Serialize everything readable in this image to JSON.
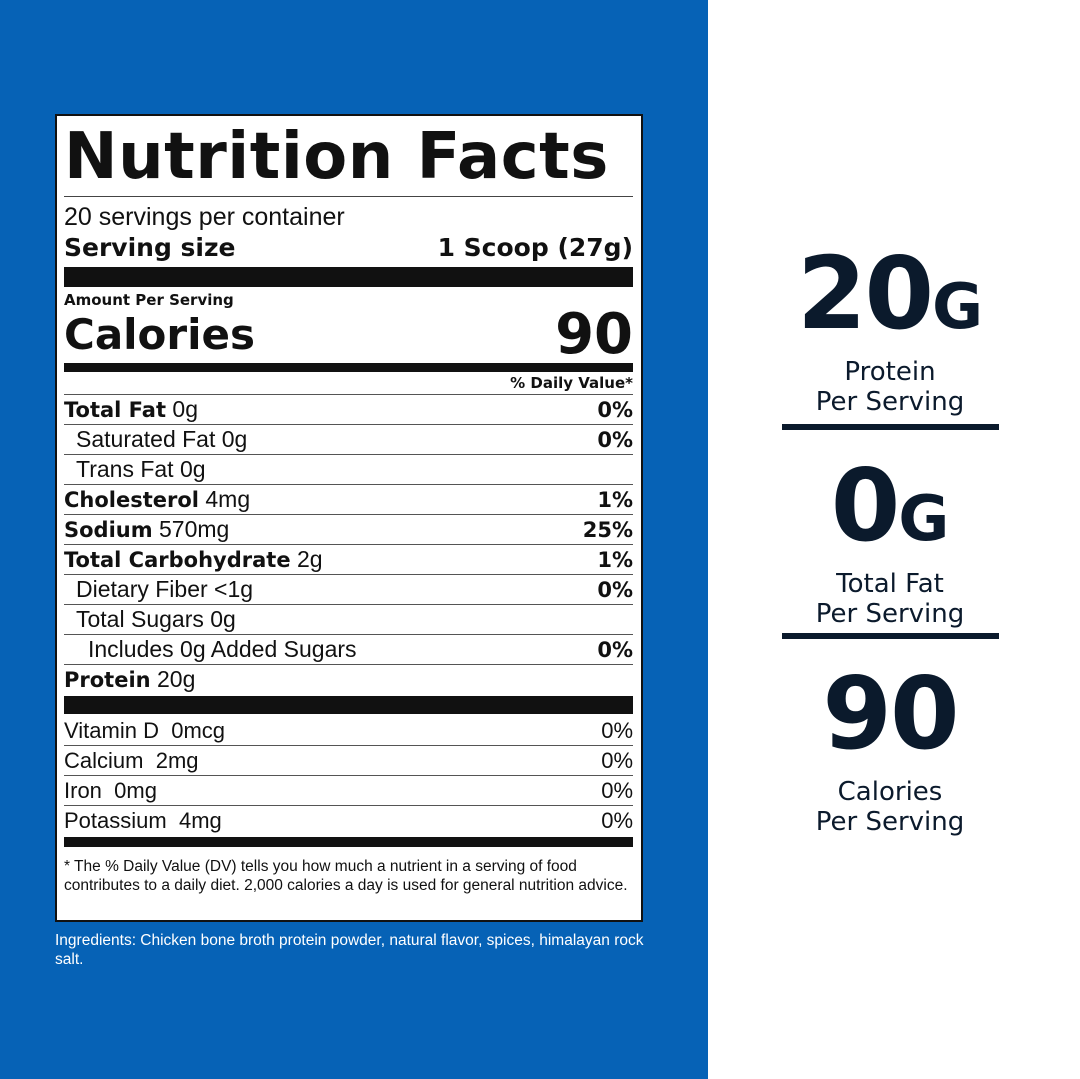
{
  "label": {
    "title": "Nutrition Facts",
    "servings_per_container": "20 servings per container",
    "serving_size_label": "Serving size",
    "serving_size_value": "1 Scoop (27g)",
    "amount_per_serving": "Amount Per Serving",
    "calories_label": "Calories",
    "calories_value": "90",
    "dv_header": "% Daily Value*",
    "nutrients": [
      {
        "bold_name": "Total Fat",
        "name": "",
        "amount": "0g",
        "dv": "0%"
      },
      {
        "bold_name": "",
        "name": "Saturated Fat",
        "amount": "0g",
        "dv": "0%"
      },
      {
        "bold_name": "",
        "name": "Trans Fat",
        "amount": "0g",
        "dv": ""
      },
      {
        "bold_name": "Cholesterol",
        "name": "",
        "amount": "4mg",
        "dv": "1%"
      },
      {
        "bold_name": "Sodium",
        "name": "",
        "amount": "570mg",
        "dv": "25%"
      },
      {
        "bold_name": "Total Carbohydrate",
        "name": "",
        "amount": "2g",
        "dv": "1%"
      },
      {
        "bold_name": "",
        "name": "Dietary Fiber",
        "amount": "<1g",
        "dv": "0%"
      },
      {
        "bold_name": "",
        "name": "Total Sugars",
        "amount": "0g",
        "dv": ""
      },
      {
        "bold_name": "",
        "name": "Includes 0g Added Sugars",
        "amount": "",
        "dv": "0%"
      },
      {
        "bold_name": "Protein",
        "name": "",
        "amount": "20g",
        "dv": ""
      }
    ],
    "vitamins": [
      {
        "name": "Vitamin D",
        "amount": "0mcg",
        "dv": "0%"
      },
      {
        "name": "Calcium",
        "amount": "2mg",
        "dv": "0%"
      },
      {
        "name": "Iron",
        "amount": "0mg",
        "dv": "0%"
      },
      {
        "name": "Potassium",
        "amount": "4mg",
        "dv": "0%"
      }
    ],
    "footnote": "* The % Daily Value (DV) tells you how much a nutrient in a serving of food contributes to a daily diet. 2,000 calories a day is used for general nutrition advice."
  },
  "ingredients": "Ingredients: Chicken bone broth protein powder, natural flavor, spices, himalayan rock salt.",
  "highlights": [
    {
      "value": "20",
      "unit": "G",
      "line1": "Protein",
      "line2": "Per Serving"
    },
    {
      "value": "0",
      "unit": "G",
      "line1": "Total Fat",
      "line2": "Per Serving"
    },
    {
      "value": "90",
      "unit": "",
      "line1": "Calories",
      "line2": "Per Serving"
    }
  ],
  "colors": {
    "panel_blue": "#0662b6",
    "navy_text": "#0b1a2c"
  }
}
